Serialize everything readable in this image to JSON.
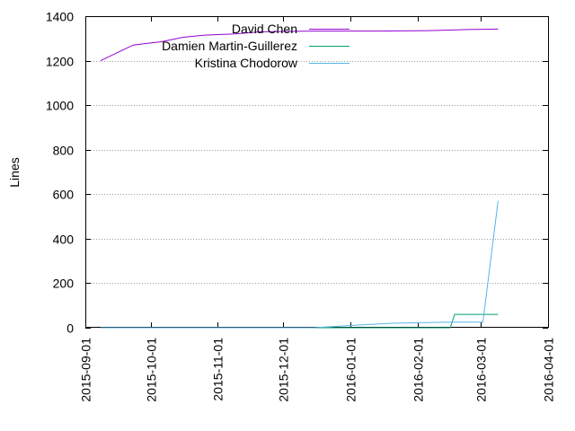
{
  "chart_data": {
    "type": "line",
    "title": "",
    "xlabel": "",
    "ylabel": "Lines",
    "xlim": [
      "2015-09-01",
      "2016-04-01"
    ],
    "ylim": [
      0,
      1400
    ],
    "x_ticks": [
      "2015-09-01",
      "2015-10-01",
      "2015-11-01",
      "2015-12-01",
      "2016-01-01",
      "2016-02-01",
      "2016-03-01",
      "2016-04-01"
    ],
    "y_ticks": [
      0,
      200,
      400,
      600,
      800,
      1000,
      1200,
      1400
    ],
    "grid": true,
    "legend": "top",
    "series": [
      {
        "name": "David Chen",
        "color": "#9400d3",
        "points": [
          [
            "2015-09-08",
            1200
          ],
          [
            "2015-09-23",
            1270
          ],
          [
            "2015-09-27",
            1275
          ],
          [
            "2015-10-06",
            1285
          ],
          [
            "2015-10-16",
            1305
          ],
          [
            "2015-10-26",
            1315
          ],
          [
            "2015-11-09",
            1320
          ],
          [
            "2015-11-21",
            1330
          ],
          [
            "2015-12-15",
            1333
          ],
          [
            "2016-01-14",
            1333
          ],
          [
            "2016-02-06",
            1335
          ],
          [
            "2016-02-24",
            1340
          ],
          [
            "2016-03-09",
            1342
          ]
        ]
      },
      {
        "name": "Damien Martin-Guillerez",
        "color": "#009e73",
        "points": [
          [
            "2015-09-08",
            0
          ],
          [
            "2016-02-16",
            0
          ],
          [
            "2016-02-18",
            60
          ],
          [
            "2016-03-09",
            60
          ]
        ]
      },
      {
        "name": "Kristina Chodorow",
        "color": "#56b4e9",
        "points": [
          [
            "2015-09-08",
            0
          ],
          [
            "2015-12-15",
            0
          ],
          [
            "2016-01-01",
            10
          ],
          [
            "2016-01-20",
            20
          ],
          [
            "2016-02-16",
            25
          ],
          [
            "2016-03-02",
            25
          ],
          [
            "2016-03-09",
            570
          ]
        ]
      }
    ]
  }
}
